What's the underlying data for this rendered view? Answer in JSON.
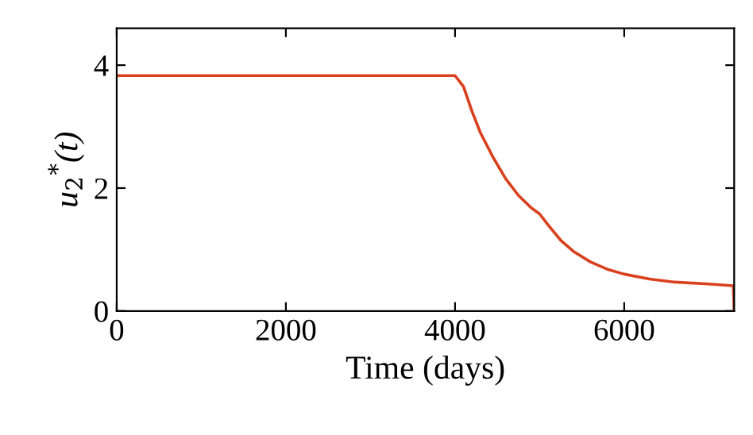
{
  "chart_data": {
    "type": "line",
    "xlabel": "Time (days)",
    "ylabel": "u$_{2}$$^{*}$(t)",
    "x": [
      0,
      4000,
      4100,
      4200,
      4300,
      4450,
      4600,
      4750,
      4900,
      5000,
      5100,
      5250,
      5400,
      5600,
      5800,
      6000,
      6300,
      6600,
      7000,
      7290,
      7300
    ],
    "series": [
      {
        "color": "#d9411e",
        "values": [
          3.83,
          3.83,
          3.65,
          3.25,
          2.9,
          2.5,
          2.15,
          1.88,
          1.68,
          1.58,
          1.4,
          1.15,
          0.97,
          0.8,
          0.68,
          0.6,
          0.52,
          0.47,
          0.44,
          0.41,
          0
        ]
      }
    ],
    "xlim": [
      0,
      7300
    ],
    "ylim": [
      0,
      4.6
    ],
    "xticks": [
      0,
      2000,
      4000,
      6000
    ],
    "yticks": [
      0,
      2,
      4
    ],
    "grid": false,
    "legend": false
  }
}
